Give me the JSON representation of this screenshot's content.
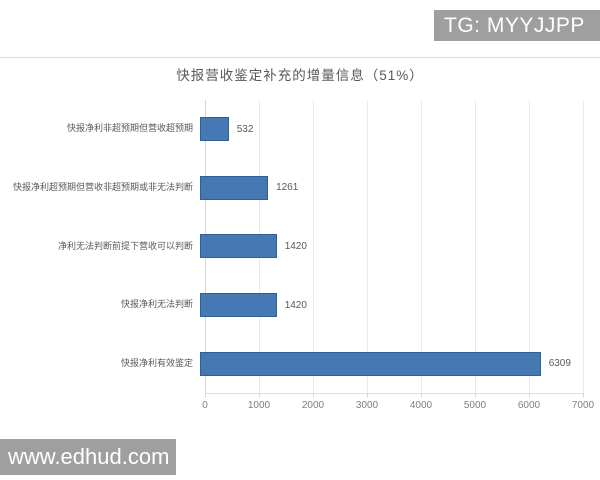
{
  "watermarks": {
    "top_right": "TG: MYYJJPP",
    "bottom_left": "www.edhud.com"
  },
  "chart_data": {
    "type": "bar",
    "orientation": "horizontal",
    "title": "快报营收鉴定补充的增量信息（51%）",
    "categories": [
      "快报净利非超预期但营收超预期",
      "快报净利超预期但营收非超预期或非无法判断",
      "净利无法判断前提下营收可以判断",
      "快报净利无法判断",
      "快报净利有效鉴定"
    ],
    "values": [
      532,
      1261,
      1420,
      1420,
      6309
    ],
    "x_ticks": [
      "0",
      "1000",
      "2000",
      "3000",
      "4000",
      "5000",
      "6000",
      "7000"
    ],
    "xlim": [
      0,
      7000
    ],
    "xlabel": "",
    "ylabel": "",
    "grid": "vertical",
    "legend": "none"
  },
  "colors": {
    "bar_fill": "#4678b4",
    "bar_border": "#30superseded",
    "bar_border_color": "#315e94",
    "title_text": "#595959",
    "label_text": "#595959",
    "tick_text": "#7f7f7f",
    "gridline": "#ebebeb",
    "separator": "#dcdcdc",
    "watermark_bg": "#9f9f9f",
    "watermark_text": "#ffffff"
  }
}
